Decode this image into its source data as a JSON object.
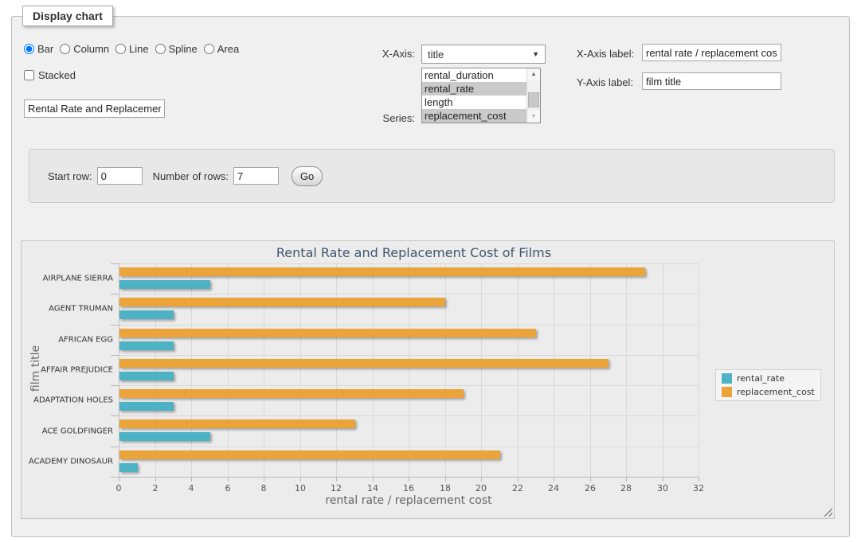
{
  "panel": {
    "legend": "Display chart"
  },
  "controls": {
    "chart_types": [
      {
        "label": "Bar",
        "selected": true
      },
      {
        "label": "Column",
        "selected": false
      },
      {
        "label": "Line",
        "selected": false
      },
      {
        "label": "Spline",
        "selected": false
      },
      {
        "label": "Area",
        "selected": false
      }
    ],
    "stacked": {
      "label": "Stacked",
      "checked": false
    },
    "chart_title_input": {
      "value": "Rental Rate and Replacement Cost of Films"
    },
    "x_axis": {
      "label": "X-Axis:",
      "selected": "title"
    },
    "series_select": {
      "label": "Series:",
      "options": [
        {
          "label": "rental_duration",
          "selected": false
        },
        {
          "label": "rental_rate",
          "selected": true
        },
        {
          "label": "length",
          "selected": false
        },
        {
          "label": "replacement_cost",
          "selected": true
        }
      ]
    },
    "x_axis_label": {
      "label": "X-Axis label:",
      "value": "rental rate / replacement cost"
    },
    "y_axis_label": {
      "label": "Y-Axis label:",
      "value": "film title"
    },
    "rows": {
      "start_label": "Start row:",
      "start_value": "0",
      "count_label": "Number of rows:",
      "count_value": "7",
      "go_label": "Go"
    }
  },
  "chart_data": {
    "type": "bar",
    "title": "Rental Rate and Replacement Cost of Films",
    "categories": [
      "AIRPLANE SIERRA",
      "AGENT TRUMAN",
      "AFRICAN EGG",
      "AFFAIR PREJUDICE",
      "ADAPTATION HOLES",
      "ACE GOLDFINGER",
      "ACADEMY DINOSAUR"
    ],
    "series": [
      {
        "name": "rental_rate",
        "color": "#4DB2C4",
        "values": [
          4.99,
          2.99,
          2.99,
          2.99,
          2.99,
          4.99,
          0.99
        ]
      },
      {
        "name": "replacement_cost",
        "color": "#EAA43A",
        "values": [
          28.99,
          17.99,
          22.99,
          26.99,
          18.99,
          12.99,
          20.99
        ]
      }
    ],
    "xlabel": "rental rate / replacement cost",
    "ylabel": "film title",
    "xlim": [
      0,
      32
    ],
    "xticks": [
      0,
      2,
      4,
      6,
      8,
      10,
      12,
      14,
      16,
      18,
      20,
      22,
      24,
      26,
      28,
      30,
      32
    ],
    "grid": true,
    "legend_position": "right"
  }
}
